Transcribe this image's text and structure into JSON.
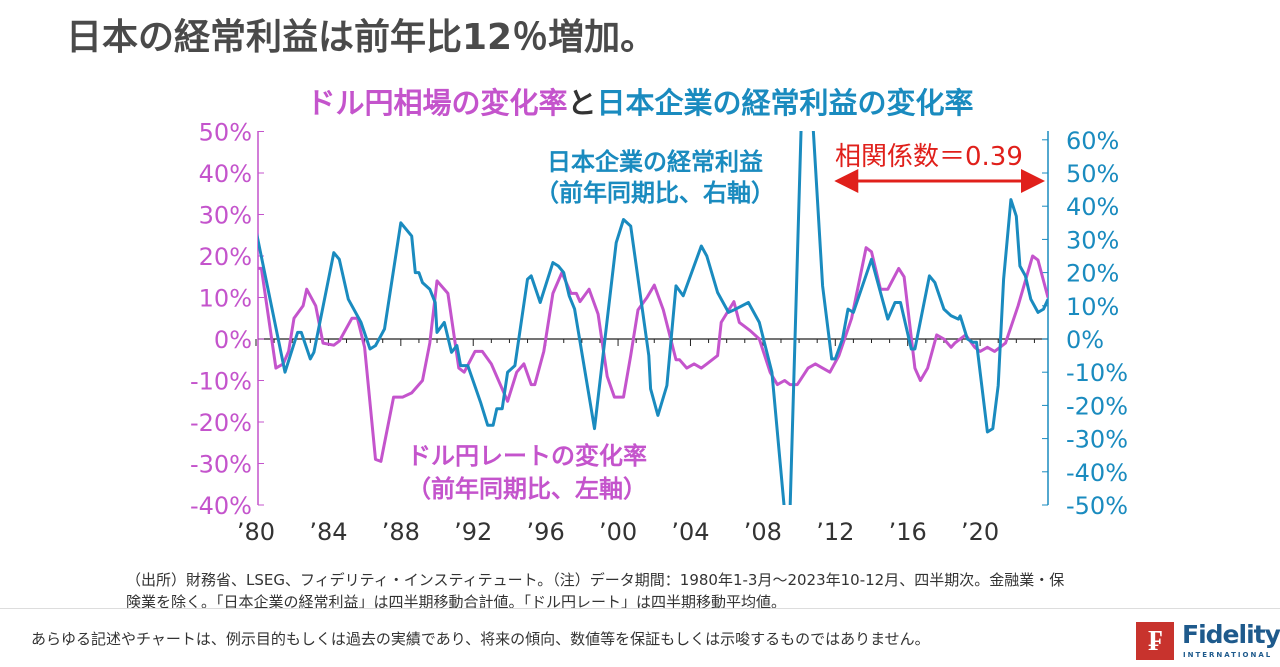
{
  "page_title": "日本の経常利益は前年比12％増加。",
  "chart_title": {
    "part1": "ドル円相場の変化率",
    "part2": "と",
    "part3": "日本企業の経常利益の変化率"
  },
  "notes": [
    "（出所）財務省、LSEG、フィデリティ・インスティテュート。（注）データ期間：1980年1-3月～2023年10-12月、四半期次。金融業・保",
    "険業を除く。「日本企業の経常利益」は四半期移動合計値。「ドル円レート」は四半期移動平均値。"
  ],
  "disclaimer": "あらゆる記述やチャートは、例示目的もしくは過去の実績であり、将来の傾向、数値等を保証もしくは示唆するものではありません。",
  "logo": {
    "name": "Fidelity",
    "sub": "INTERNATIONAL",
    "mark": "F"
  },
  "colors": {
    "magenta": "#c454cc",
    "blue": "#1a8bbf",
    "red": "#e0201b",
    "axis": "#222222"
  },
  "chart_data": {
    "type": "line",
    "title": "ドル円相場の変化率と日本企業の経常利益の変化率",
    "x_tick_labels": [
      "’80",
      "’84",
      "’88",
      "’92",
      "’96",
      "’00",
      "’04",
      "’08",
      "’12",
      "’16",
      "’20"
    ],
    "x_ticks": [
      1980,
      1984,
      1988,
      1992,
      1996,
      2000,
      2004,
      2008,
      2012,
      2016,
      2020
    ],
    "xlim": [
      1980,
      2023.75
    ],
    "left_axis": {
      "ylim": [
        -40,
        50
      ],
      "ticks": [
        50,
        40,
        30,
        20,
        10,
        0,
        -10,
        -20,
        -30,
        -40
      ],
      "tick_labels": [
        "50%",
        "40%",
        "30%",
        "20%",
        "10%",
        "0%",
        "-10%",
        "-20%",
        "-30%",
        "-40%"
      ]
    },
    "right_axis": {
      "ylim": [
        -50,
        62
      ],
      "ticks": [
        60,
        50,
        40,
        30,
        20,
        10,
        0,
        -10,
        -20,
        -30,
        -40,
        -50
      ],
      "tick_labels": [
        "60%",
        "50%",
        "40%",
        "30%",
        "20%",
        "10%",
        "0%",
        "-10%",
        "-20%",
        "-30%",
        "-40%",
        "-50%"
      ]
    },
    "annotations": {
      "profit_label": [
        "日本企業の経常利益",
        "（前年同期比、右軸）"
      ],
      "fx_label": [
        "ドル円レートの変化率",
        "（前年同期比、左軸）"
      ],
      "correlation": "相関係数＝0.39",
      "correlation_range": [
        2012,
        2023.75
      ]
    },
    "series": [
      {
        "name": "ドル円レートの変化率",
        "axis": "left",
        "color": "#c454cc",
        "points": [
          [
            1980,
            17
          ],
          [
            1980.3,
            17
          ],
          [
            1981.1,
            -7
          ],
          [
            1981.5,
            -6
          ],
          [
            1981.8,
            -3
          ],
          [
            1982.1,
            5
          ],
          [
            1982.6,
            8
          ],
          [
            1982.8,
            12
          ],
          [
            1983.3,
            8
          ],
          [
            1983.7,
            -1
          ],
          [
            1984.3,
            -1.5
          ],
          [
            1984.6,
            -0.5
          ],
          [
            1985.3,
            5
          ],
          [
            1985.6,
            5
          ],
          [
            1986,
            -2
          ],
          [
            1986.6,
            -29
          ],
          [
            1986.9,
            -29.5
          ],
          [
            1987.6,
            -14
          ],
          [
            1988.1,
            -14
          ],
          [
            1988.6,
            -13
          ],
          [
            1989.2,
            -10
          ],
          [
            1989.6,
            -1
          ],
          [
            1990,
            14
          ],
          [
            1990.6,
            11
          ],
          [
            1991.2,
            -7
          ],
          [
            1991.5,
            -8
          ],
          [
            1992.1,
            -3
          ],
          [
            1992.5,
            -3
          ],
          [
            1993,
            -6
          ],
          [
            1993.9,
            -15
          ],
          [
            1994.4,
            -8
          ],
          [
            1994.8,
            -6
          ],
          [
            1995.2,
            -11
          ],
          [
            1995.4,
            -11
          ],
          [
            1995.9,
            -3
          ],
          [
            1996.4,
            11
          ],
          [
            1996.9,
            16
          ],
          [
            1997.4,
            11
          ],
          [
            1997.7,
            11
          ],
          [
            1997.9,
            9
          ],
          [
            1998.4,
            12
          ],
          [
            1998.9,
            6
          ],
          [
            1999.4,
            -9
          ],
          [
            1999.8,
            -14
          ],
          [
            2000.3,
            -14
          ],
          [
            2000.7,
            -4
          ],
          [
            2001.1,
            7
          ],
          [
            2001.6,
            10
          ],
          [
            2002,
            13
          ],
          [
            2002.5,
            7
          ],
          [
            2003.2,
            -5
          ],
          [
            2003.4,
            -5
          ],
          [
            2003.8,
            -7
          ],
          [
            2004.2,
            -6
          ],
          [
            2004.6,
            -7
          ],
          [
            2004.9,
            -6
          ],
          [
            2005.5,
            -4
          ],
          [
            2005.7,
            4
          ],
          [
            2006.4,
            9
          ],
          [
            2006.7,
            4
          ],
          [
            2007,
            3
          ],
          [
            2007.3,
            2
          ],
          [
            2007.8,
            0
          ],
          [
            2008.4,
            -8
          ],
          [
            2008.8,
            -11
          ],
          [
            2009.2,
            -10
          ],
          [
            2009.5,
            -11
          ],
          [
            2009.9,
            -11
          ],
          [
            2010.5,
            -7
          ],
          [
            2010.9,
            -6
          ],
          [
            2011.3,
            -7
          ],
          [
            2011.7,
            -8
          ],
          [
            2012.2,
            -4
          ],
          [
            2012.9,
            5
          ],
          [
            2013.7,
            22
          ],
          [
            2014,
            21
          ],
          [
            2014.5,
            12
          ],
          [
            2014.9,
            12
          ],
          [
            2015.5,
            17
          ],
          [
            2015.8,
            15
          ],
          [
            2016.4,
            -7
          ],
          [
            2016.7,
            -10
          ],
          [
            2017.1,
            -7
          ],
          [
            2017.6,
            1
          ],
          [
            2018,
            0
          ],
          [
            2018.4,
            -2
          ],
          [
            2018.6,
            -1
          ],
          [
            2019.2,
            1
          ],
          [
            2019.7,
            -2
          ],
          [
            2020,
            -3
          ],
          [
            2020.4,
            -2
          ],
          [
            2020.8,
            -3
          ],
          [
            2021.4,
            -1
          ],
          [
            2022.1,
            8
          ],
          [
            2022.9,
            20
          ],
          [
            2023.2,
            19
          ],
          [
            2023.75,
            10
          ]
        ]
      },
      {
        "name": "日本企業の経常利益",
        "axis": "right",
        "color": "#1a8bbf",
        "points": [
          [
            1980,
            32.7
          ],
          [
            1981.6,
            -10
          ],
          [
            1982.3,
            2
          ],
          [
            1982.5,
            2
          ],
          [
            1983,
            -6
          ],
          [
            1983.2,
            -4
          ],
          [
            1984.3,
            26
          ],
          [
            1984.6,
            24
          ],
          [
            1985.1,
            12
          ],
          [
            1985.8,
            5
          ],
          [
            1986.3,
            -3
          ],
          [
            1986.6,
            -2
          ],
          [
            1987.1,
            3
          ],
          [
            1988,
            35
          ],
          [
            1988.6,
            31
          ],
          [
            1988.8,
            20
          ],
          [
            1989,
            20
          ],
          [
            1989.2,
            17
          ],
          [
            1989.6,
            15
          ],
          [
            1989.9,
            11
          ],
          [
            1990,
            2
          ],
          [
            1990.4,
            5
          ],
          [
            1990.8,
            -4
          ],
          [
            1991.1,
            -2
          ],
          [
            1991.3,
            -8
          ],
          [
            1991.7,
            -8
          ],
          [
            1992.4,
            -19
          ],
          [
            1992.8,
            -26
          ],
          [
            1993.1,
            -26
          ],
          [
            1993.3,
            -21
          ],
          [
            1993.6,
            -21
          ],
          [
            1993.9,
            -10
          ],
          [
            1994.3,
            -8
          ],
          [
            1995,
            18
          ],
          [
            1995.2,
            19
          ],
          [
            1995.7,
            11
          ],
          [
            1996.4,
            23
          ],
          [
            1996.7,
            22
          ],
          [
            1997,
            20
          ],
          [
            1997.3,
            13
          ],
          [
            1997.6,
            9
          ],
          [
            1998.7,
            -27
          ],
          [
            1999.9,
            29
          ],
          [
            2000.3,
            36
          ],
          [
            2000.7,
            34
          ],
          [
            2001.7,
            -5
          ],
          [
            2001.8,
            -15
          ],
          [
            2002.2,
            -23
          ],
          [
            2002.7,
            -14
          ],
          [
            2003.2,
            16
          ],
          [
            2003.6,
            13
          ],
          [
            2004.6,
            28
          ],
          [
            2004.9,
            25
          ],
          [
            2005.5,
            14
          ],
          [
            2006.1,
            8
          ],
          [
            2006.5,
            9
          ],
          [
            2007.2,
            11
          ],
          [
            2007.8,
            5
          ],
          [
            2008.5,
            -10
          ],
          [
            2009.2,
            -52
          ],
          [
            2009.5,
            -52
          ],
          [
            2010.2,
            80
          ],
          [
            2010.6,
            80
          ],
          [
            2011.3,
            16
          ],
          [
            2011.8,
            -6
          ],
          [
            2012,
            -6
          ],
          [
            2012.4,
            0
          ],
          [
            2012.7,
            9
          ],
          [
            2013,
            8
          ],
          [
            2014,
            24
          ],
          [
            2014.5,
            14
          ],
          [
            2014.9,
            6
          ],
          [
            2015.3,
            11
          ],
          [
            2015.6,
            11
          ],
          [
            2016.2,
            -3
          ],
          [
            2016.4,
            -3
          ],
          [
            2017.2,
            19
          ],
          [
            2017.5,
            17
          ],
          [
            2018,
            9
          ],
          [
            2018.4,
            7
          ],
          [
            2018.8,
            6
          ],
          [
            2018.9,
            7
          ],
          [
            2019.3,
            0
          ],
          [
            2019.6,
            -1
          ],
          [
            2019.8,
            -1
          ],
          [
            2020.4,
            -28
          ],
          [
            2020.7,
            -27
          ],
          [
            2021,
            -14
          ],
          [
            2021.3,
            18
          ],
          [
            2021.7,
            42
          ],
          [
            2022,
            37
          ],
          [
            2022.2,
            22
          ],
          [
            2022.5,
            19
          ],
          [
            2022.8,
            12
          ],
          [
            2023.2,
            8
          ],
          [
            2023.5,
            9
          ],
          [
            2023.75,
            12
          ]
        ]
      }
    ]
  }
}
